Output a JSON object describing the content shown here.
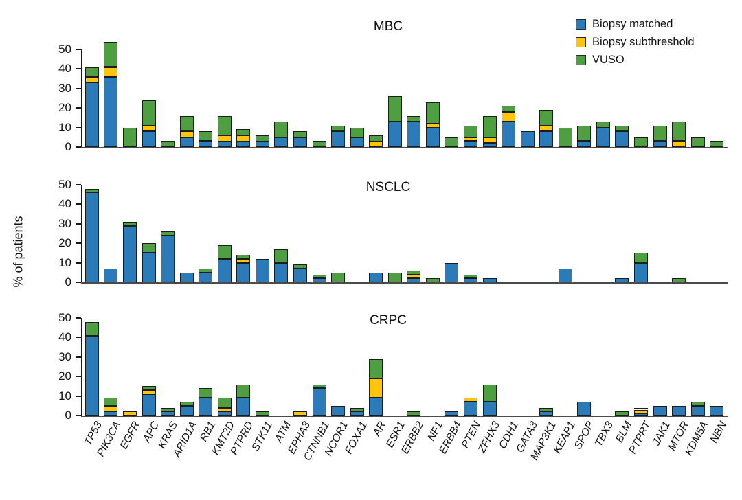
{
  "figure_title": "",
  "chart_data": {
    "type": "bar",
    "stacked": true,
    "orientation": "vertical",
    "grid": false,
    "legend_position": "top-right",
    "ylabel": "% of patients",
    "series_names": [
      "Biopsy matched",
      "Biopsy subthreshold",
      "VUSO"
    ],
    "colors": {
      "Biopsy matched": "#2b7bb9",
      "Biopsy subthreshold": "#fdc50b",
      "VUSO": "#4f9e42"
    },
    "categories": [
      "TP53",
      "PIK3CA",
      "EGFR",
      "APC",
      "KRAS",
      "ARID1A",
      "RB1",
      "KMT2D",
      "PTPRD",
      "STK11",
      "ATM",
      "EPHA3",
      "CTNNB1",
      "NCOR1",
      "FOXA1",
      "AR",
      "ESR1",
      "ERBB2",
      "NF1",
      "ERBB4",
      "PTEN",
      "ZFHX3",
      "CDH1",
      "GATA3",
      "MAP3K1",
      "KEAP1",
      "SPOP",
      "TBX3",
      "BLM",
      "PTPRT",
      "JAK1",
      "MTOR",
      "KDM5A",
      "NBN"
    ],
    "panels": [
      {
        "title": "MBC",
        "ylim": [
          0,
          55
        ],
        "yticks": [
          0,
          10,
          20,
          30,
          40,
          50
        ],
        "series": [
          {
            "name": "Biopsy matched",
            "values": [
              33,
              36,
              0,
              8,
              0,
              5,
              3,
              3,
              3,
              3,
              5,
              5,
              0,
              8,
              5,
              0,
              13,
              13,
              10,
              0,
              3,
              2,
              13,
              8,
              8,
              0,
              3,
              10,
              8,
              0,
              3,
              0,
              0,
              0
            ]
          },
          {
            "name": "Biopsy subthreshold",
            "values": [
              3,
              5,
              0,
              3,
              0,
              3,
              0,
              3,
              3,
              0,
              0,
              0,
              0,
              0,
              0,
              3,
              0,
              0,
              2,
              0,
              2,
              3,
              5,
              0,
              3,
              0,
              0,
              0,
              0,
              0,
              0,
              3,
              0,
              0
            ]
          },
          {
            "name": "VUSO",
            "values": [
              5,
              13,
              10,
              13,
              3,
              8,
              5,
              10,
              3,
              3,
              8,
              3,
              3,
              3,
              5,
              3,
              13,
              3,
              11,
              5,
              6,
              11,
              3,
              0,
              8,
              10,
              8,
              3,
              3,
              5,
              8,
              10,
              5,
              3
            ]
          }
        ]
      },
      {
        "title": "NSCLC",
        "ylim": [
          0,
          55
        ],
        "yticks": [
          0,
          10,
          20,
          30,
          40,
          50
        ],
        "series": [
          {
            "name": "Biopsy matched",
            "values": [
              46,
              7,
              29,
              15,
              24,
              5,
              5,
              12,
              10,
              12,
              10,
              7,
              2,
              0,
              0,
              5,
              0,
              2,
              0,
              10,
              2,
              2,
              0,
              0,
              0,
              7,
              0,
              0,
              2,
              10,
              0,
              0,
              0,
              0
            ]
          },
          {
            "name": "Biopsy subthreshold",
            "values": [
              0,
              0,
              0,
              0,
              0,
              0,
              0,
              0,
              2,
              0,
              0,
              0,
              0,
              0,
              0,
              0,
              0,
              2,
              0,
              0,
              0,
              0,
              0,
              0,
              0,
              0,
              0,
              0,
              0,
              0,
              0,
              0,
              0,
              0
            ]
          },
          {
            "name": "VUSO",
            "values": [
              2,
              0,
              2,
              5,
              2,
              0,
              2,
              7,
              2,
              0,
              7,
              2,
              2,
              5,
              0,
              0,
              5,
              2,
              2,
              0,
              2,
              0,
              0,
              0,
              0,
              0,
              0,
              0,
              0,
              5,
              0,
              2,
              0,
              0
            ]
          }
        ]
      },
      {
        "title": "CRPC",
        "ylim": [
          0,
          55
        ],
        "yticks": [
          0,
          10,
          20,
          30,
          40,
          50
        ],
        "series": [
          {
            "name": "Biopsy matched",
            "values": [
              41,
              2,
              0,
              11,
              2,
              5,
              9,
              2,
              9,
              0,
              0,
              0,
              14,
              5,
              2,
              9,
              0,
              0,
              0,
              2,
              7,
              7,
              0,
              0,
              2,
              0,
              7,
              0,
              0,
              1,
              5,
              5,
              5,
              5
            ]
          },
          {
            "name": "Biopsy subthreshold",
            "values": [
              0,
              3,
              2,
              2,
              0,
              0,
              0,
              2,
              0,
              0,
              0,
              2,
              0,
              0,
              0,
              10,
              0,
              0,
              0,
              0,
              2,
              0,
              0,
              0,
              0,
              0,
              0,
              0,
              0,
              2,
              0,
              0,
              0,
              0
            ]
          },
          {
            "name": "VUSO",
            "values": [
              7,
              4,
              0,
              2,
              2,
              2,
              5,
              5,
              7,
              2,
              0,
              0,
              2,
              0,
              2,
              10,
              0,
              2,
              0,
              0,
              0,
              9,
              0,
              0,
              2,
              0,
              0,
              0,
              2,
              1,
              0,
              0,
              2,
              0
            ]
          }
        ]
      }
    ]
  }
}
